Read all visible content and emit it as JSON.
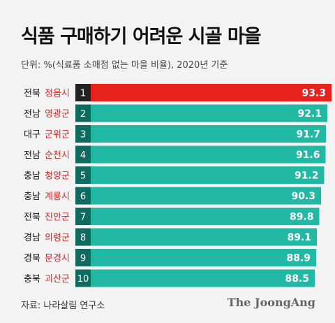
{
  "header": {
    "title": "식품 구매하기 어려운 시골 마을",
    "subtitle": "단위: %(식료품 소매점 없는 마을 비율), 2020년 기준"
  },
  "footer": {
    "source": "자료: 나라살림 연구소",
    "brand": "The JoongAng"
  },
  "colors": {
    "highlight_bar": "#e8221d",
    "bar": "#22b9a4",
    "rank_box_top": "#222222",
    "rank_box": "#0f6b60",
    "region_text": "#111111",
    "name_text": "#d9221b"
  },
  "chart_data": {
    "type": "bar",
    "orientation": "horizontal",
    "categories": [
      {
        "region": "전북",
        "name": "정읍시",
        "rank": "1"
      },
      {
        "region": "전남",
        "name": "영광군",
        "rank": "2"
      },
      {
        "region": "대구",
        "name": "군위군",
        "rank": "3"
      },
      {
        "region": "전남",
        "name": "순천시",
        "rank": "4"
      },
      {
        "region": "충남",
        "name": "청양군",
        "rank": "5"
      },
      {
        "region": "충남",
        "name": "계룡시",
        "rank": "6"
      },
      {
        "region": "전북",
        "name": "진안군",
        "rank": "7"
      },
      {
        "region": "경남",
        "name": "의령군",
        "rank": "8"
      },
      {
        "region": "경북",
        "name": "문경시",
        "rank": "9"
      },
      {
        "region": "충북",
        "name": "괴산군",
        "rank": "10"
      }
    ],
    "values": [
      93.3,
      92.1,
      91.7,
      91.6,
      91.2,
      90.3,
      89.8,
      89.1,
      88.9,
      88.5
    ],
    "value_labels": [
      "93.3",
      "92.1",
      "91.7",
      "91.6",
      "91.2",
      "90.3",
      "89.8",
      "89.1",
      "88.9",
      "88.5"
    ],
    "unit": "%",
    "grid": false,
    "legend": "none"
  }
}
